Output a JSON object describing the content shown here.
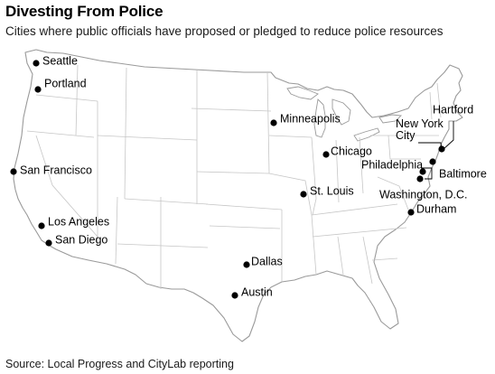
{
  "title": "Divesting From Police",
  "subtitle": "Cities where public officials have proposed or pledged to reduce police resources",
  "source": "Source: Local Progress and CityLab reporting",
  "cities": [
    {
      "id": "seattle",
      "name": "Seattle"
    },
    {
      "id": "portland",
      "name": "Portland"
    },
    {
      "id": "san-francisco",
      "name": "San Francisco"
    },
    {
      "id": "los-angeles",
      "name": "Los Angeles"
    },
    {
      "id": "san-diego",
      "name": "San Diego"
    },
    {
      "id": "minneapolis",
      "name": "Minneapolis"
    },
    {
      "id": "chicago",
      "name": "Chicago"
    },
    {
      "id": "st-louis",
      "name": "St. Louis"
    },
    {
      "id": "dallas",
      "name": "Dallas"
    },
    {
      "id": "austin",
      "name": "Austin"
    },
    {
      "id": "hartford",
      "name": "Hartford"
    },
    {
      "id": "new-york-city",
      "name_lines": [
        "New York",
        "City"
      ]
    },
    {
      "id": "philadelphia",
      "name": "Philadelphia"
    },
    {
      "id": "baltimore",
      "name": "Baltimore"
    },
    {
      "id": "washington-dc",
      "name": "Washington, D.C."
    },
    {
      "id": "durham",
      "name": "Durham"
    }
  ]
}
